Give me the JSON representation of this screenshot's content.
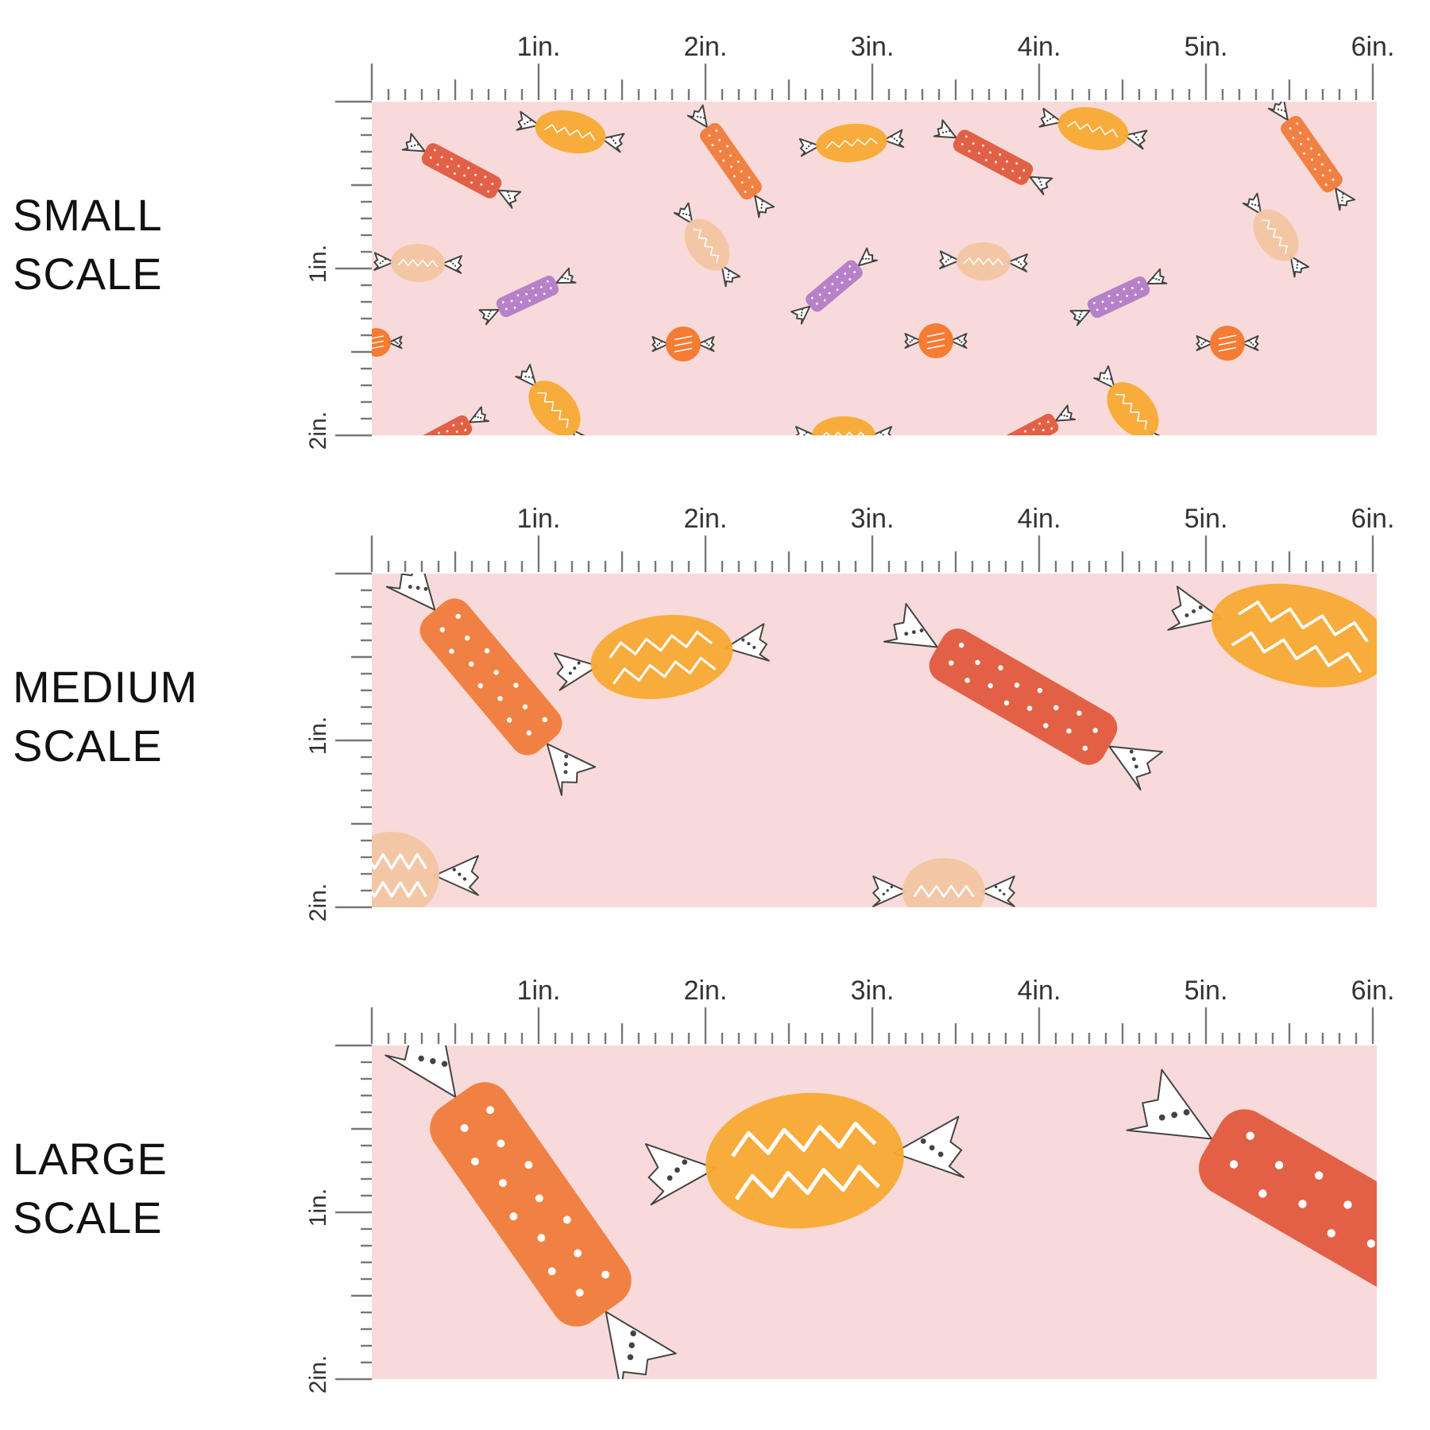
{
  "background_color": "#f9dada",
  "candy_colors": {
    "red_orange": "#e0573a",
    "orange": "#f07a35",
    "yellow_orange": "#f8aa33",
    "peach": "#f2c6a3",
    "purple": "#b07ac8",
    "round_orange": "#f4772a"
  },
  "ruler_units": {
    "horizontal": [
      "1in.",
      "2in.",
      "3in.",
      "4in.",
      "5in.",
      "6in."
    ],
    "vertical": [
      "1in.",
      "2in."
    ]
  },
  "sections": [
    {
      "label_line1": "SMALL",
      "label_line2": "SCALE"
    },
    {
      "label_line1": "MEDIUM",
      "label_line2": "SCALE"
    },
    {
      "label_line1": "LARGE",
      "label_line2": "SCALE"
    }
  ]
}
